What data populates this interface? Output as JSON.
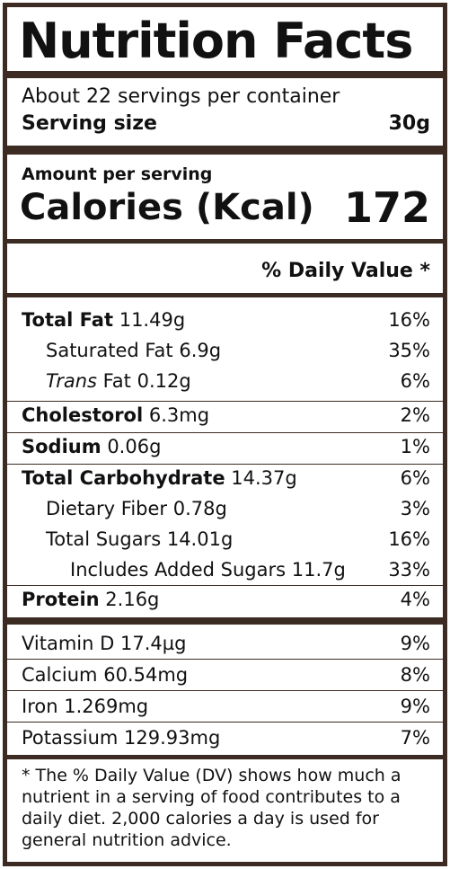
{
  "title": "Nutrition Facts",
  "servings_per_container": "About 22 servings per container",
  "serving_size": {
    "label": "Serving size",
    "value": "30g"
  },
  "amount_per_serving": "Amount per serving",
  "calories": {
    "label": "Calories (Kcal)",
    "value": "172"
  },
  "daily_value_header": "% Daily Value *",
  "nutrients": [
    {
      "name": "Total Fat",
      "amount": "11.49g",
      "dv": "16%"
    },
    {
      "name": "Saturated Fat",
      "amount": "6.9g",
      "dv": "35%"
    },
    {
      "name_italic": "Trans",
      "name": "Fat",
      "amount": "0.12g",
      "dv": "6%"
    },
    {
      "name": "Cholestorol",
      "amount": "6.3mg",
      "dv": "2%"
    },
    {
      "name": "Sodium",
      "amount": "0.06g",
      "dv": "1%"
    },
    {
      "name": "Total Carbohydrate",
      "amount": "14.37g",
      "dv": "6%"
    },
    {
      "name": "Dietary Fiber",
      "amount": "0.78g",
      "dv": "3%"
    },
    {
      "name": "Total Sugars",
      "amount": "14.01g",
      "dv": "16%"
    },
    {
      "name": "Includes Added Sugars",
      "amount": "11.7g",
      "dv": "33%"
    },
    {
      "name": "Protein",
      "amount": "2.16g",
      "dv": "4%"
    }
  ],
  "vitamins": [
    {
      "name": "Vitamin D",
      "amount": "17.4µg",
      "dv": "9%"
    },
    {
      "name": "Calcium",
      "amount": "60.54mg",
      "dv": "8%"
    },
    {
      "name": "Iron",
      "amount": "1.269mg",
      "dv": "9%"
    },
    {
      "name": "Potassium",
      "amount": "129.93mg",
      "dv": "7%"
    }
  ],
  "footnote": "* The % Daily Value (DV) shows how much a nutrient in a serving of food contributes to a daily diet. 2,000 calories a day is used for general nutrition advice.",
  "colors": {
    "border": "#3b2b22",
    "text": "#111111",
    "background": "#ffffff"
  }
}
